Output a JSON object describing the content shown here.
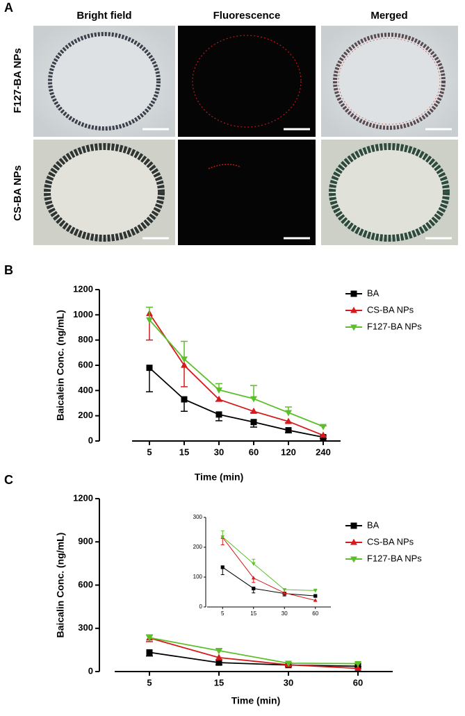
{
  "panel_a": {
    "label": "A",
    "columns": [
      "Bright field",
      "Fluorescence",
      "Merged"
    ],
    "rows": [
      "F127-BA NPs",
      "CS-BA NPs"
    ]
  },
  "chart_data": [
    {
      "type": "line",
      "panel_label": "B",
      "ylabel": "Baicalein Conc. (ng/mL)",
      "xlabel": "Time (min)",
      "categories": [
        5,
        15,
        30,
        60,
        120,
        240
      ],
      "ylim": [
        0,
        1200
      ],
      "yticks": [
        0,
        200,
        400,
        600,
        800,
        1000,
        1200
      ],
      "series": [
        {
          "name": "BA",
          "color": "#000000",
          "marker": "square",
          "error_direction": "down",
          "values": [
            580,
            330,
            210,
            150,
            85,
            30
          ],
          "errors": [
            190,
            95,
            50,
            40,
            20,
            10
          ]
        },
        {
          "name": "CS-BA NPs",
          "color": "#d7191c",
          "marker": "triangle-up",
          "error_direction": "down",
          "values": [
            1010,
            600,
            330,
            235,
            155,
            45
          ],
          "errors": [
            210,
            170,
            15,
            10,
            10,
            5
          ]
        },
        {
          "name": "F127-BA NPs",
          "color": "#5cbf2a",
          "marker": "triangle-down",
          "error_direction": "up",
          "values": [
            960,
            650,
            405,
            335,
            225,
            115
          ],
          "errors": [
            100,
            140,
            50,
            105,
            45,
            5
          ]
        }
      ]
    },
    {
      "type": "line",
      "panel_label": "C",
      "ylabel": "Baicalin Conc. (ng/mL)",
      "xlabel": "Time (min)",
      "categories": [
        5,
        15,
        30,
        60
      ],
      "ylim": [
        0,
        1200
      ],
      "yticks": [
        0,
        300,
        600,
        900,
        1200
      ],
      "inset": {
        "ylim": [
          0,
          300
        ],
        "yticks": [
          0,
          100,
          200,
          300
        ]
      },
      "series": [
        {
          "name": "BA",
          "color": "#000000",
          "marker": "square",
          "error_direction": "down",
          "values": [
            133,
            62,
            45,
            37
          ],
          "errors": [
            25,
            15,
            8,
            3
          ]
        },
        {
          "name": "CS-BA NPs",
          "color": "#d7191c",
          "marker": "triangle-up",
          "error_direction": "down",
          "values": [
            233,
            97,
            47,
            22
          ],
          "errors": [
            25,
            15,
            5,
            3
          ]
        },
        {
          "name": "F127-BA NPs",
          "color": "#5cbf2a",
          "marker": "triangle-down",
          "error_direction": "up",
          "values": [
            235,
            145,
            58,
            55
          ],
          "errors": [
            20,
            15,
            3,
            5
          ]
        }
      ]
    }
  ]
}
